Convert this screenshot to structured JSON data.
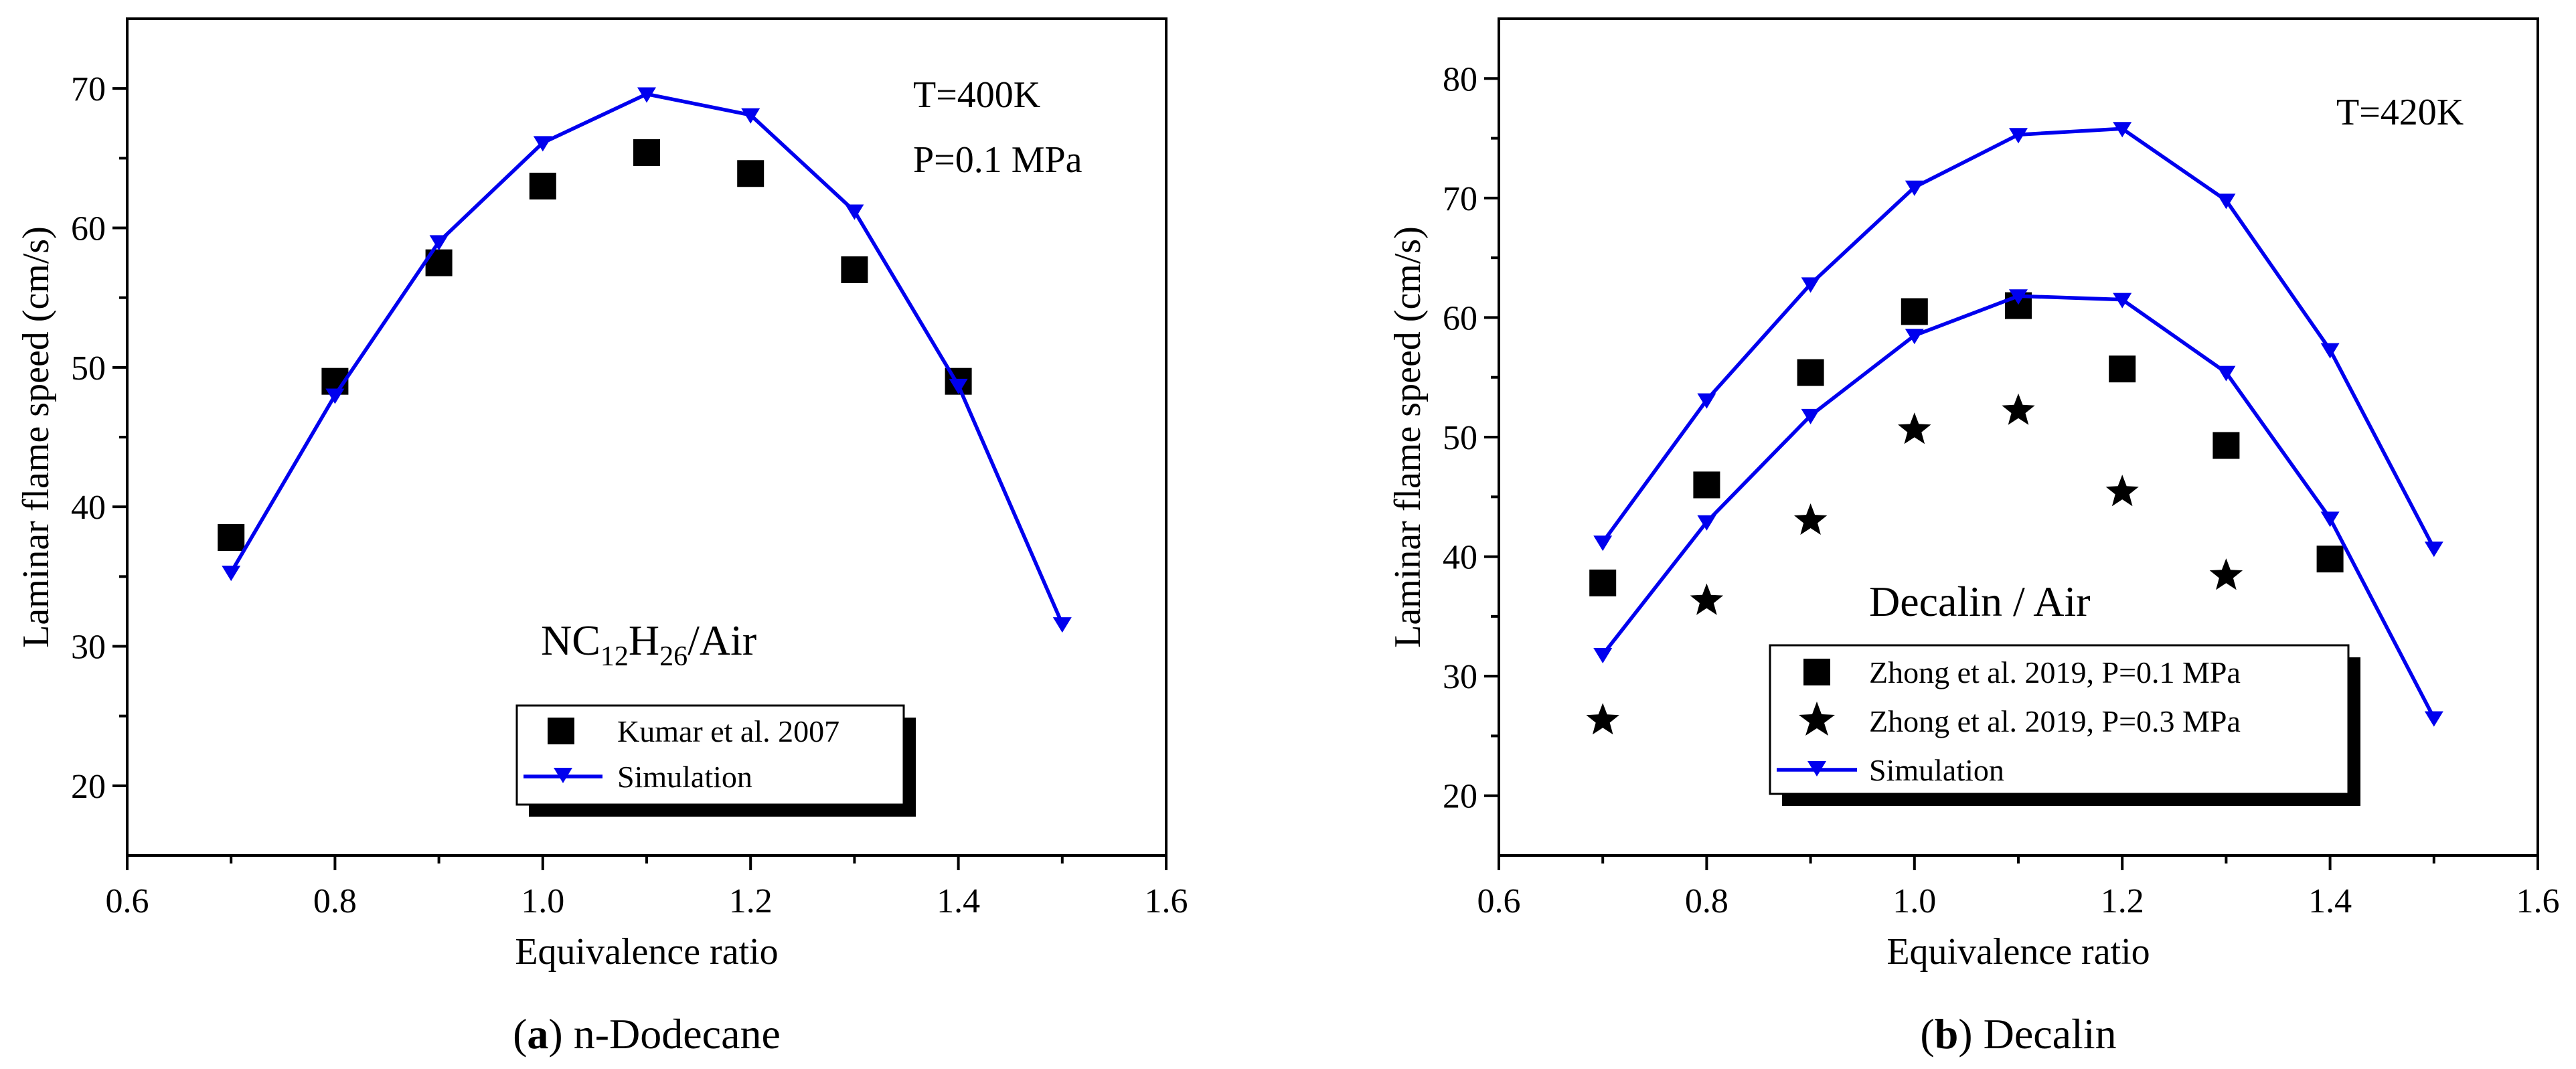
{
  "chart_data": [
    {
      "type": "scatter",
      "panel_id": "a",
      "caption_letter": "a",
      "caption_rest": ") n-Dodecane",
      "xlabel": "Equivalence ratio",
      "ylabel": "Laminar flame speed (cm/s)",
      "xlim": [
        0.6,
        1.6
      ],
      "ylim": [
        15,
        75
      ],
      "xticks": [
        "0.6",
        "0.8",
        "1.0",
        "1.2",
        "1.4",
        "1.6"
      ],
      "yticks": [
        "20",
        "30",
        "40",
        "50",
        "60",
        "70"
      ],
      "annotations": [
        "T=400K",
        "P=0.1 MPa"
      ],
      "species_label": {
        "pre": "NC",
        "sub1": "12",
        "mid": "H",
        "sub2": "26",
        "post": "/Air"
      },
      "series": [
        {
          "name": "Kumar et al. 2007",
          "marker": "square",
          "color": "#000000",
          "x": [
            0.7,
            0.8,
            0.9,
            1.0,
            1.1,
            1.2,
            1.3,
            1.4
          ],
          "y": [
            37.8,
            49.0,
            57.5,
            63.0,
            65.4,
            63.9,
            57.0,
            49.0
          ]
        },
        {
          "name": "Simulation",
          "marker": "triangle-down",
          "line": true,
          "color": "#0000ee",
          "x": [
            0.7,
            0.8,
            0.9,
            1.0,
            1.1,
            1.2,
            1.3,
            1.4,
            1.5
          ],
          "y": [
            35.3,
            48.0,
            59.0,
            66.1,
            69.6,
            68.1,
            61.2,
            48.7,
            31.6
          ]
        }
      ]
    },
    {
      "type": "scatter",
      "panel_id": "b",
      "caption_letter": "b",
      "caption_rest": ") Decalin",
      "xlabel": "Equivalence ratio",
      "ylabel": "Laminar flame speed (cm/s)",
      "xlim": [
        0.6,
        1.6
      ],
      "ylim": [
        15,
        85
      ],
      "xticks": [
        "0.6",
        "0.8",
        "1.0",
        "1.2",
        "1.4",
        "1.6"
      ],
      "yticks": [
        "20",
        "30",
        "40",
        "50",
        "60",
        "70",
        "80"
      ],
      "annotations": [
        "T=420K"
      ],
      "mixture_label": "Decalin / Air",
      "series": [
        {
          "name": "Zhong et al. 2019, P=0.1 MPa",
          "marker": "square",
          "color": "#000000",
          "x": [
            0.7,
            0.8,
            0.9,
            1.0,
            1.1,
            1.2,
            1.3,
            1.4
          ],
          "y": [
            37.8,
            46.0,
            55.4,
            60.5,
            61.0,
            55.7,
            49.3,
            39.8
          ]
        },
        {
          "name": "Zhong et al. 2019, P=0.3 MPa",
          "marker": "star",
          "color": "#000000",
          "x": [
            0.7,
            0.8,
            0.9,
            1.0,
            1.1,
            1.2,
            1.3
          ],
          "y": [
            26.3,
            36.3,
            43.0,
            50.6,
            52.2,
            45.4,
            38.4
          ]
        },
        {
          "name": "Simulation",
          "marker": "triangle-down",
          "line": true,
          "color": "#0000ee",
          "legend": true,
          "group": "P=0.1 MPa",
          "x": [
            0.7,
            0.8,
            0.9,
            1.0,
            1.1,
            1.2,
            1.3,
            1.4,
            1.5
          ],
          "y": [
            41.2,
            53.1,
            62.8,
            70.9,
            75.3,
            75.8,
            69.8,
            57.3,
            40.7
          ]
        },
        {
          "name": "Simulation",
          "marker": "triangle-down",
          "line": true,
          "color": "#0000ee",
          "legend": false,
          "group": "P=0.3 MPa",
          "x": [
            0.7,
            0.8,
            0.9,
            1.0,
            1.1,
            1.2,
            1.3,
            1.4,
            1.5
          ],
          "y": [
            31.8,
            42.9,
            51.8,
            58.5,
            61.8,
            61.5,
            55.4,
            43.2,
            26.5
          ]
        }
      ]
    }
  ]
}
